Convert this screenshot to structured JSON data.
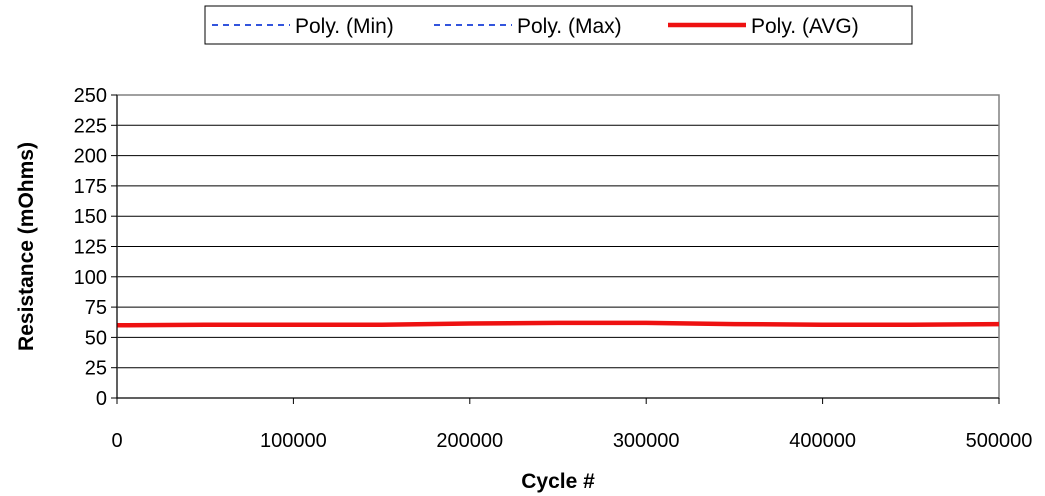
{
  "chart_data": {
    "type": "line",
    "title": "",
    "xlabel": "Cycle #",
    "ylabel": "Resistance (mOhms)",
    "xlim": [
      0,
      500000
    ],
    "ylim": [
      0,
      250
    ],
    "x_ticks": [
      0,
      100000,
      200000,
      300000,
      400000,
      500000
    ],
    "x_tick_labels": [
      "0",
      "100000",
      "200000",
      "300000",
      "400000",
      "500000"
    ],
    "y_ticks": [
      0,
      25,
      50,
      75,
      100,
      125,
      150,
      175,
      200,
      225,
      250
    ],
    "y_tick_labels": [
      "0",
      "25",
      "50",
      "75",
      "100",
      "125",
      "150",
      "175",
      "200",
      "225",
      "250"
    ],
    "grid": "horizontal",
    "legend_position": "top",
    "series": [
      {
        "name": "Poly. (Min)",
        "color": "#3355dd",
        "style": "dashed",
        "x": [
          0,
          50000,
          100000,
          150000,
          200000,
          250000,
          300000,
          350000,
          400000,
          450000,
          500000
        ],
        "values": [
          59.5,
          60,
          60,
          60,
          61,
          61.5,
          61.5,
          60.5,
          60,
          60,
          60.5
        ]
      },
      {
        "name": "Poly. (Max)",
        "color": "#3355dd",
        "style": "dashed",
        "x": [
          0,
          50000,
          100000,
          150000,
          200000,
          250000,
          300000,
          350000,
          400000,
          450000,
          500000
        ],
        "values": [
          60.5,
          61,
          61,
          61,
          62,
          62.5,
          62.5,
          61.5,
          61,
          61,
          61.5
        ]
      },
      {
        "name": "Poly. (AVG)",
        "color": "#ee1111",
        "style": "solid",
        "x": [
          0,
          50000,
          100000,
          150000,
          200000,
          250000,
          300000,
          350000,
          400000,
          450000,
          500000
        ],
        "values": [
          60,
          60.5,
          60.5,
          60.5,
          61.5,
          62,
          62,
          61,
          60.5,
          60.5,
          61
        ]
      }
    ]
  }
}
